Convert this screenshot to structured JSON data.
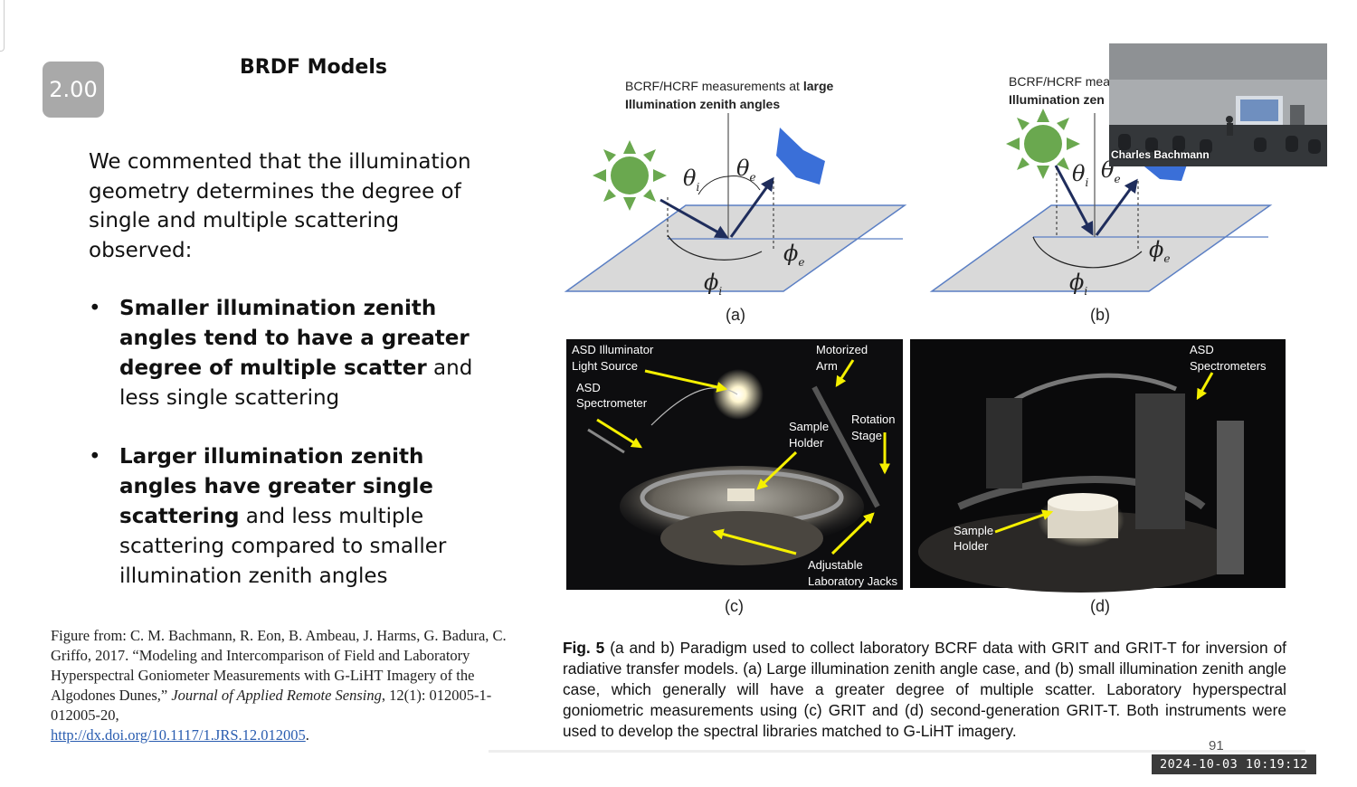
{
  "playback": {
    "speed": "2.00"
  },
  "slide": {
    "title": "BRDF Models",
    "intro": "We commented that the illumination geometry determines the degree of single and multiple scattering observed:",
    "bullets": [
      {
        "bold": "Smaller illumination zenith angles tend to have a greater degree of multiple scatter",
        "rest": " and less single scattering"
      },
      {
        "bold": "Larger illumination zenith angles have greater single scattering",
        "rest": " and less multiple scattering compared to smaller illumination zenith angles"
      }
    ],
    "citation": {
      "prefix": "Figure from: C. M. Bachmann, R. Eon, B. Ambeau, J. Harms, G. Badura, C. Griffo, 2017.  “Modeling and Intercomparison of Field and Laboratory Hyperspectral Goniometer Measurements  with G-LiHT Imagery of the Algodones Dunes,” ",
      "journal": "Journal of Applied Remote Sensing",
      "suffix": ", 12(1): 012005-1-012005-20,",
      "link": "http://dx.doi.org/10.1117/1.JRS.12.012005",
      "end": "."
    },
    "page_number": "91"
  },
  "figure": {
    "panel_a_title_1": "BCRF/HCRF measurements at ",
    "panel_a_title_bold": "large",
    "panel_a_title_2": "Illumination zenith angles",
    "panel_b_title_1": "BCRF/HCRF mea",
    "panel_b_title_2": "Illumination zen",
    "theta_i": "θ",
    "theta_e": "θ",
    "phi": "ϕ",
    "sub_i": "i",
    "sub_e": "e",
    "label_a": "(a)",
    "label_b": "(b)",
    "label_c": "(c)",
    "label_d": "(d)",
    "c_illuminator_1": "ASD Illuminator",
    "c_illuminator_2": "Light Source",
    "c_arm_1": "Motorized",
    "c_arm_2": "Arm",
    "c_spec_1": "ASD",
    "c_spec_2": "Spectrometer",
    "c_holder_1": "Sample",
    "c_holder_2": "Holder",
    "c_rotation_1": "Rotation",
    "c_rotation_2": "Stage",
    "c_jacks_1": "Adjustable",
    "c_jacks_2": "Laboratory Jacks",
    "d_spec_1": "ASD",
    "d_spec_2": "Spectrometers",
    "d_holder_1": "Sample",
    "d_holder_2": "Holder"
  },
  "caption": {
    "label": "Fig. 5",
    "text": "  (a and b) Paradigm used to collect laboratory BCRF data with GRIT and GRIT-T for inversion of radiative transfer models. (a) Large illumination zenith angle case, and (b) small illumination zenith angle case, which generally will have a greater degree of multiple scatter. Laboratory hyperspectral goniometric measurements using (c) GRIT and (d) second-generation GRIT-T. Both instruments were used to develop the spectral libraries matched to G-LiHT imagery."
  },
  "video": {
    "speaker": "Charles Bachmann"
  },
  "recording": {
    "timestamp": "2024-10-03  10:19:12"
  },
  "colors": {
    "sun": "#6aa84f",
    "sun_rays": "#3d8a4f",
    "sensor": "#3a6fd8",
    "arrow": "#1f2d5c",
    "plane": "#d9d9d9",
    "plane_edge": "#5b7fc4",
    "annotation": "#f5f000"
  }
}
